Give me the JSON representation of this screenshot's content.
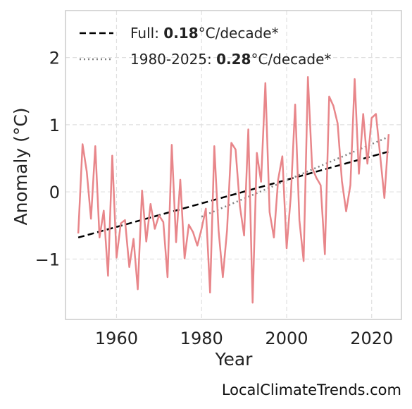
{
  "chart_data": {
    "type": "line",
    "xlabel": "Year",
    "ylabel": "Anomaly (°C)",
    "xlim": [
      1948,
      2027
    ],
    "ylim": [
      -1.9,
      2.7
    ],
    "x_ticks": [
      1960,
      1980,
      2000,
      2020
    ],
    "y_ticks": [
      -1,
      0,
      1,
      2
    ],
    "y_tick_labels": [
      "−1",
      "0",
      "1",
      "2"
    ],
    "grid": true,
    "legend_placement": "top-left",
    "colors": {
      "series": "#e8868a",
      "full_trend": "#000000",
      "recent_trend": "#808080",
      "grid": "#e0e0e0",
      "frame": "#cccccc"
    },
    "series": [
      {
        "x": [
          1951,
          1952,
          1953,
          1954,
          1955,
          1956,
          1957,
          1958,
          1959,
          1960,
          1961,
          1962,
          1963,
          1964,
          1965,
          1966,
          1967,
          1968,
          1969,
          1970,
          1971,
          1972,
          1973,
          1974,
          1975,
          1976,
          1977,
          1978,
          1979,
          1980,
          1981,
          1982,
          1983,
          1984,
          1985,
          1986,
          1987,
          1988,
          1989,
          1990,
          1991,
          1992,
          1993,
          1994,
          1995,
          1996,
          1997,
          1998,
          1999,
          2000,
          2001,
          2002,
          2003,
          2004,
          2005,
          2006,
          2007,
          2008,
          2009,
          2010,
          2011,
          2012,
          2013,
          2014,
          2015,
          2016,
          2017,
          2018,
          2019,
          2020,
          2021,
          2022,
          2023,
          2024
        ],
        "values": [
          -0.62,
          0.71,
          0.3,
          -0.4,
          0.68,
          -0.68,
          -0.28,
          -1.25,
          0.54,
          -0.98,
          -0.47,
          -0.42,
          -1.12,
          -0.7,
          -1.45,
          0.02,
          -0.74,
          -0.18,
          -0.55,
          -0.35,
          -0.45,
          -1.27,
          0.7,
          -0.75,
          0.18,
          -0.99,
          -0.49,
          -0.6,
          -0.8,
          -0.55,
          -0.25,
          -1.5,
          0.68,
          -0.58,
          -1.27,
          -0.57,
          0.73,
          0.63,
          -0.21,
          -0.65,
          0.93,
          -1.65,
          0.58,
          0.15,
          1.62,
          -0.3,
          -0.68,
          0.18,
          0.53,
          -0.84,
          -0.05,
          1.3,
          -0.42,
          -1.03,
          1.71,
          0.36,
          0.21,
          0.1,
          -0.93,
          1.42,
          1.28,
          1.02,
          0.16,
          -0.29,
          0.1,
          1.68,
          0.27,
          1.16,
          0.42,
          1.1,
          1.16,
          0.54,
          -0.09,
          0.86
        ]
      }
    ],
    "trend_lines": [
      {
        "label_prefix": "Full: ",
        "rate": "0.18",
        "label_suffix": "°C/decade*",
        "style": "dashed",
        "x": [
          1951,
          2024
        ],
        "y": [
          -0.68,
          0.6
        ]
      },
      {
        "label_prefix": "1980-2025: ",
        "rate": "0.28",
        "label_suffix": "°C/decade*",
        "style": "dotted",
        "x": [
          1980,
          2024
        ],
        "y": [
          -0.37,
          0.82
        ]
      }
    ],
    "watermark": "LocalClimateTrends.com"
  }
}
